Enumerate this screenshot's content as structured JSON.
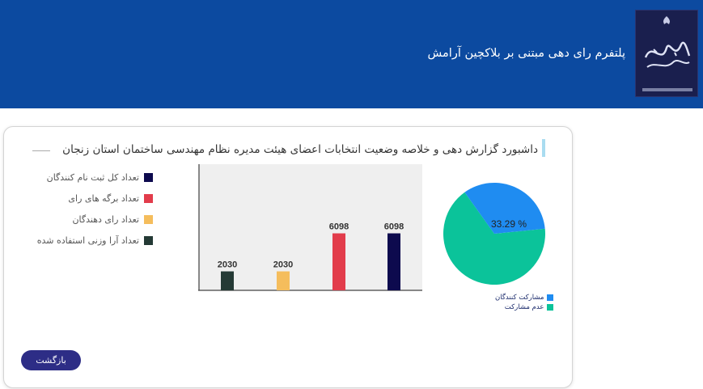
{
  "header": {
    "title": "پلتفرم رای دهی مبتنی بر بلاکچین آرامش",
    "logo_icon": "election-logo-icon"
  },
  "dashboard": {
    "title": "داشبورد گزارش دهی و خلاصه وضعیت انتخابات اعضای هیئت مدیره نظام مهندسی ساختمان استان زنجان"
  },
  "legend": {
    "items": [
      {
        "label": "تعداد کل ثبت نام کنندگان",
        "color": "#0d0a4e"
      },
      {
        "label": "تعداد برگه های رای",
        "color": "#e23c4b"
      },
      {
        "label": "تعداد رای دهندگان",
        "color": "#f5bd5c"
      },
      {
        "label": "تعداد آرا وزنی استفاده شده",
        "color": "#243a35"
      }
    ]
  },
  "chart_data": [
    {
      "type": "bar",
      "categories": [
        "تعداد آرا وزنی استفاده شده",
        "تعداد رای دهندگان",
        "تعداد برگه های رای",
        "تعداد کل ثبت نام کنندگان"
      ],
      "values": [
        2030,
        2030,
        6098,
        6098
      ],
      "value_labels": [
        "2030",
        "2030",
        "6098",
        "6098"
      ],
      "colors": [
        "#243a35",
        "#f5bd5c",
        "#e23c4b",
        "#0d0a4e"
      ],
      "ylim": [
        0,
        13500
      ],
      "grid": false
    },
    {
      "type": "pie",
      "labels": [
        "مشارکت کنندگان",
        "عدم مشارکت"
      ],
      "values": [
        33.29,
        66.71
      ],
      "colors": [
        "#1f8cf1",
        "#0bc39a"
      ],
      "data_label": "33.29 %",
      "legend_position": "bottom"
    }
  ],
  "actions": {
    "back_label": "بازگشت"
  }
}
